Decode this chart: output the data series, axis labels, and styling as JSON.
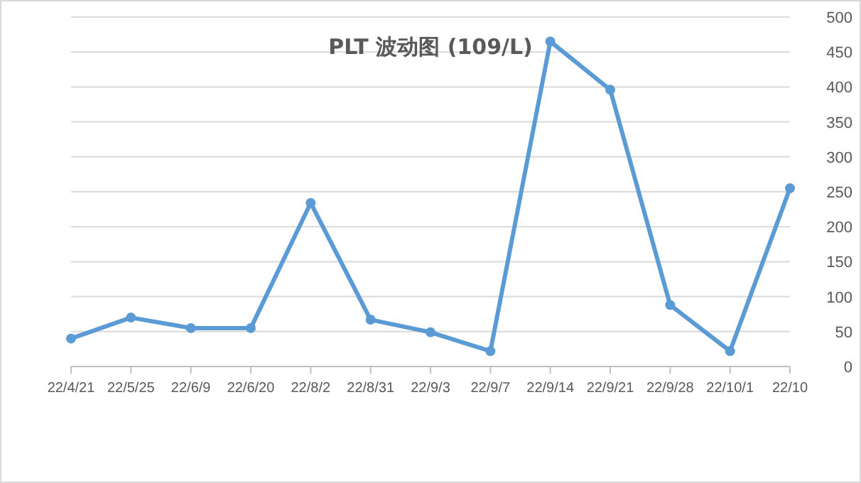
{
  "chart_data": {
    "type": "line",
    "title": "PLT 波动图 (109/L)",
    "categories": [
      "22/4/21",
      "22/5/25",
      "22/6/9",
      "22/6/20",
      "22/8/2",
      "22/8/31",
      "22/9/3",
      "22/9/7",
      "22/9/14",
      "22/9/21",
      "22/9/28",
      "22/10/1",
      "22/10"
    ],
    "series": [
      {
        "color": "#5b9bd5",
        "values": [
          40,
          70,
          55,
          55,
          234,
          67,
          49,
          22,
          465,
          396,
          88,
          22,
          255
        ]
      }
    ],
    "ylim": [
      0,
      500
    ],
    "yticks": [
      0,
      50,
      100,
      150,
      200,
      250,
      300,
      350,
      400,
      450,
      500
    ],
    "grid": "y",
    "marker": "circle",
    "line_style": "solid"
  }
}
